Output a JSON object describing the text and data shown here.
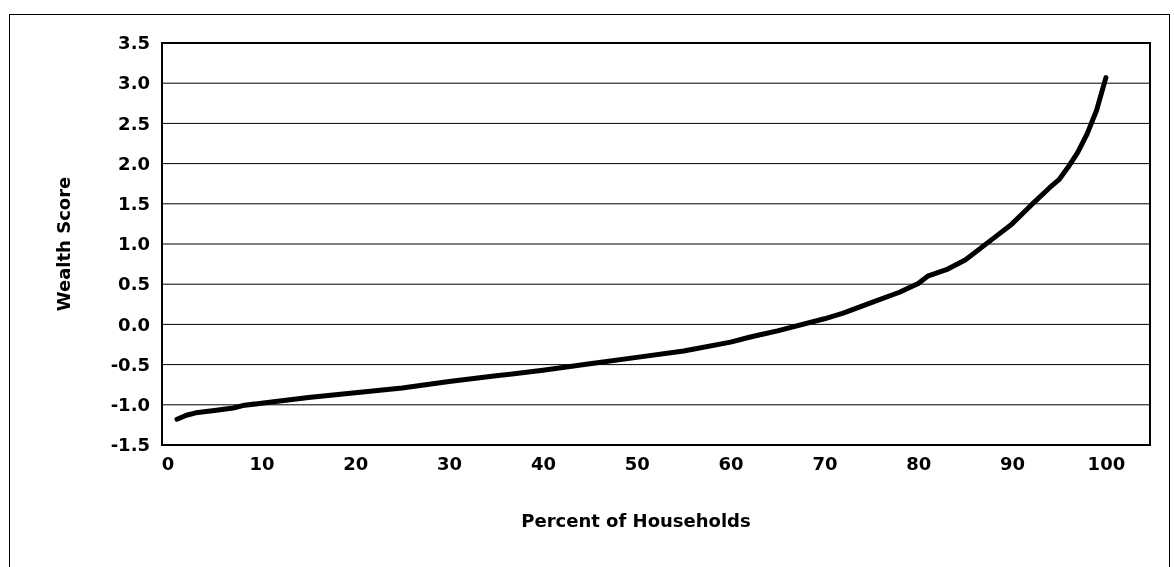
{
  "chart_data": {
    "type": "line",
    "xlabel": "Percent of Households",
    "ylabel": "Wealth Score",
    "x": [
      1,
      2,
      3,
      5,
      7,
      8,
      10,
      15,
      20,
      25,
      30,
      35,
      40,
      45,
      50,
      55,
      60,
      62,
      65,
      70,
      72,
      75,
      78,
      80,
      81,
      83,
      85,
      88,
      90,
      92,
      94,
      95,
      96,
      97,
      98,
      99,
      100
    ],
    "series": [
      {
        "color": "#000000",
        "values": [
          -1.18,
          -1.13,
          -1.1,
          -1.07,
          -1.04,
          -1.01,
          -0.98,
          -0.91,
          -0.85,
          -0.79,
          -0.71,
          -0.64,
          -0.57,
          -0.49,
          -0.41,
          -0.33,
          -0.22,
          -0.16,
          -0.08,
          0.07,
          0.14,
          0.27,
          0.4,
          0.51,
          0.6,
          0.68,
          0.8,
          1.07,
          1.25,
          1.48,
          1.7,
          1.8,
          1.96,
          2.14,
          2.37,
          2.66,
          3.07
        ]
      }
    ],
    "xlim": [
      -0.6,
      104.7
    ],
    "xticks": [
      0,
      10,
      20,
      30,
      40,
      50,
      60,
      70,
      80,
      90,
      100
    ],
    "ylim": [
      -1.5,
      3.5
    ],
    "yticks": [
      {
        "value": -1.5,
        "label": "-1.5"
      },
      {
        "value": -1,
        "label": "-1.0"
      },
      {
        "value": -0.5,
        "label": "-0.5"
      },
      {
        "value": 0,
        "label": "0.0"
      },
      {
        "value": 0.5,
        "label": "0.5"
      },
      {
        "value": 1,
        "label": "1.0"
      },
      {
        "value": 1.5,
        "label": "1.5"
      },
      {
        "value": 2,
        "label": "2.0"
      },
      {
        "value": 2.5,
        "label": "2.5"
      },
      {
        "value": 3,
        "label": "3.0"
      },
      {
        "value": 3.5,
        "label": "3.5"
      }
    ],
    "grid": "y",
    "marker": "none",
    "line_style": "solid"
  }
}
